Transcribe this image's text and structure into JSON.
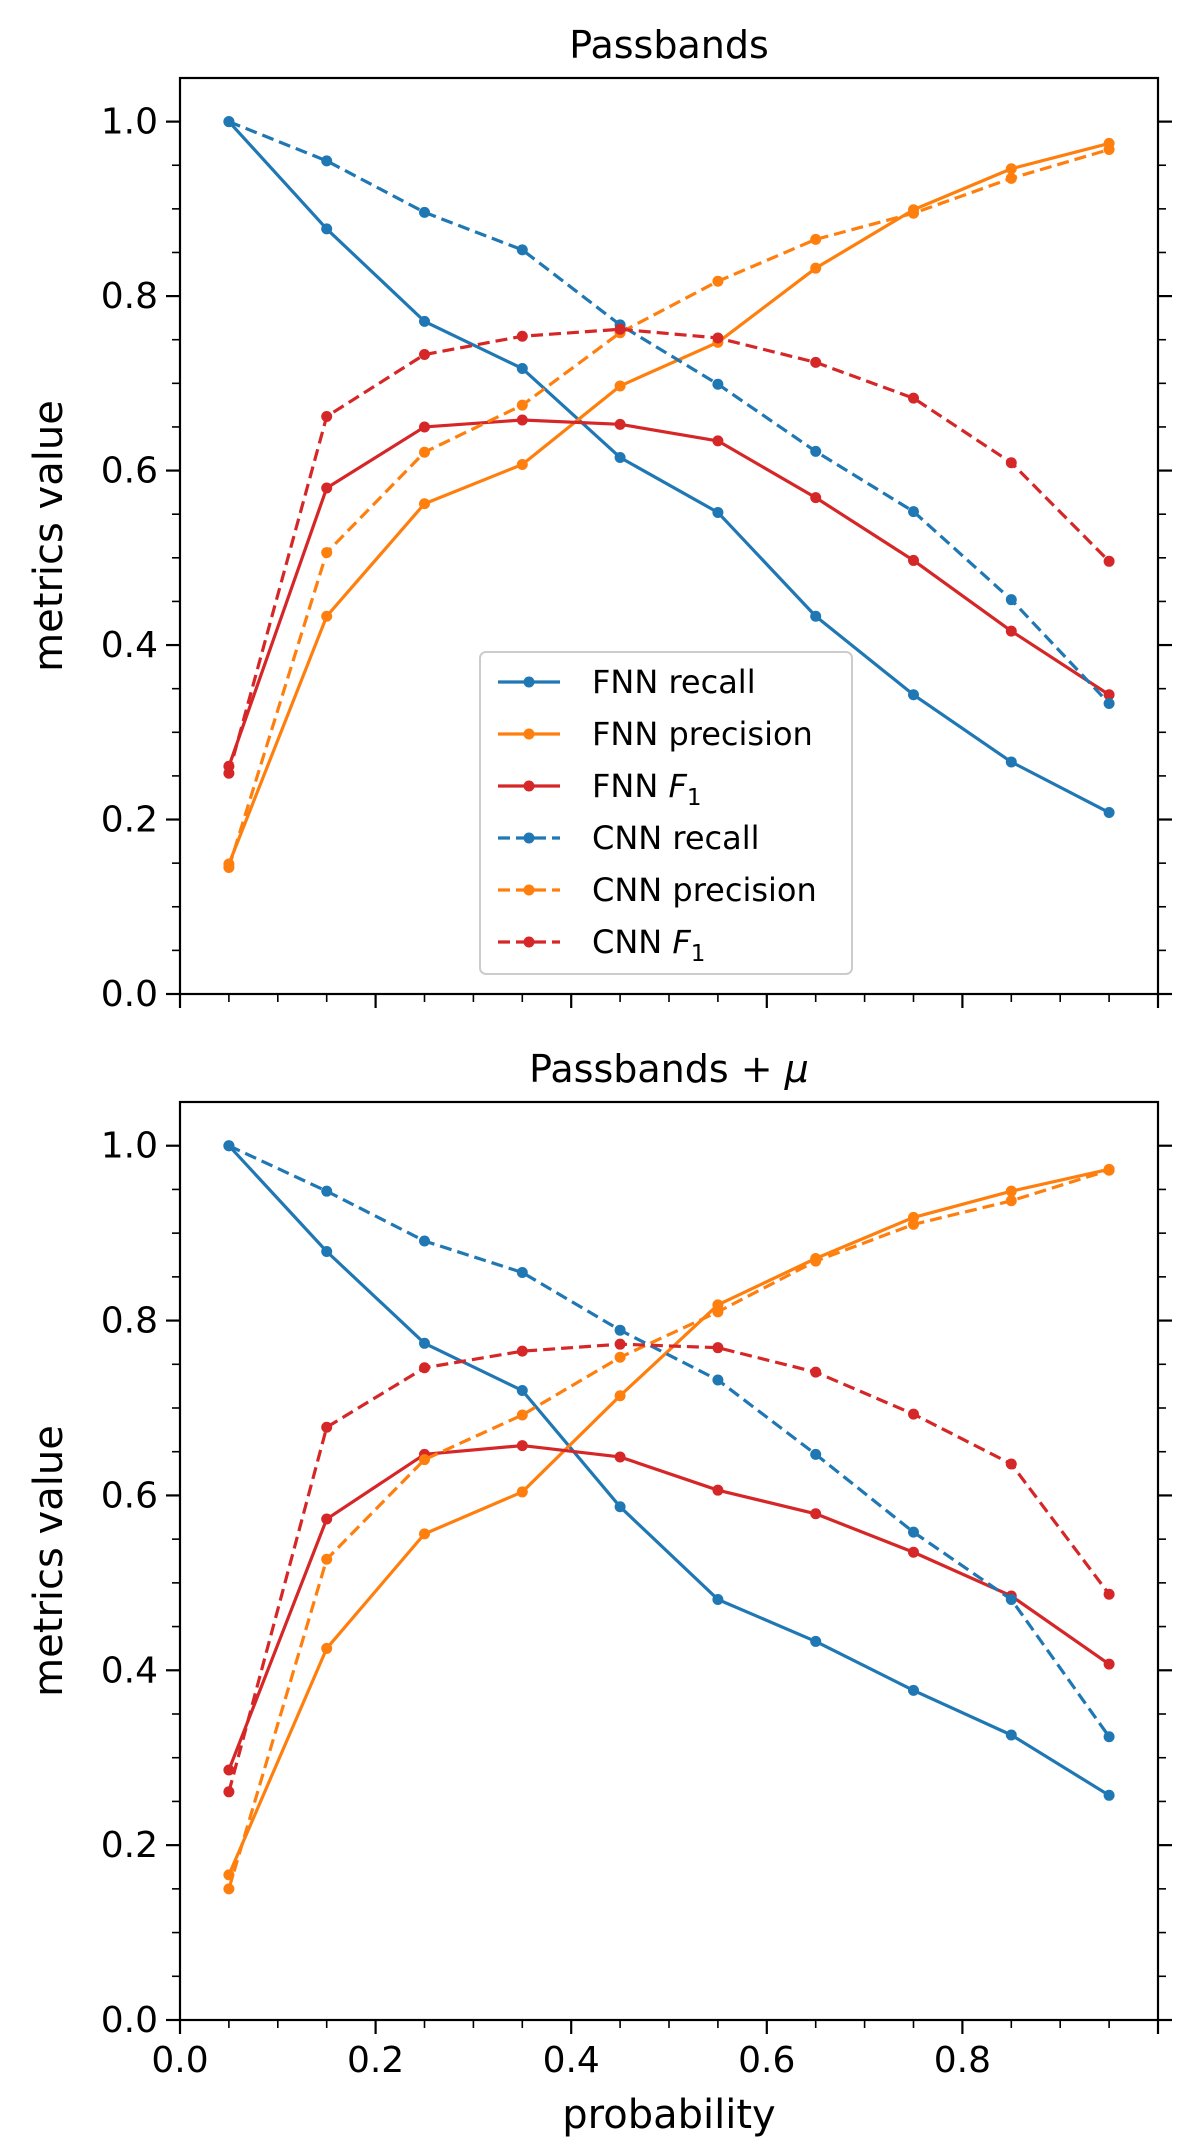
{
  "chart_data": [
    {
      "type": "line",
      "title": "Passbands",
      "title_suffix": "",
      "xlabel": "",
      "ylabel": "metrics value",
      "xlim": [
        0.0,
        1.0
      ],
      "ylim": [
        0.0,
        1.05
      ],
      "xticks": [],
      "yticks": [
        "0.0",
        "0.2",
        "0.4",
        "0.6",
        "0.8",
        "1.0"
      ],
      "legend": {
        "placement": "lower-center",
        "entries": [
          {
            "label": "FNN recall",
            "sub": ""
          },
          {
            "label": "FNN precision",
            "sub": ""
          },
          {
            "label": "FNN F",
            "sub": "1"
          },
          {
            "label": "CNN recall",
            "sub": ""
          },
          {
            "label": "CNN precision",
            "sub": ""
          },
          {
            "label": "CNN F",
            "sub": "1"
          }
        ]
      },
      "x": [
        0.05,
        0.15,
        0.25,
        0.35,
        0.45,
        0.55,
        0.65,
        0.75,
        0.85,
        0.95
      ],
      "series": [
        {
          "name": "FNN recall",
          "color": "#1f77b4",
          "style": "solid",
          "values": [
            1.0,
            0.877,
            0.771,
            0.717,
            0.615,
            0.552,
            0.433,
            0.343,
            0.266,
            0.208
          ]
        },
        {
          "name": "FNN precision",
          "color": "#ff7f0e",
          "style": "solid",
          "values": [
            0.149,
            0.433,
            0.562,
            0.607,
            0.697,
            0.747,
            0.832,
            0.899,
            0.946,
            0.975
          ]
        },
        {
          "name": "FNN F1",
          "color": "#d62728",
          "style": "solid",
          "values": [
            0.261,
            0.58,
            0.65,
            0.658,
            0.653,
            0.634,
            0.569,
            0.497,
            0.416,
            0.343
          ]
        },
        {
          "name": "CNN recall",
          "color": "#1f77b4",
          "style": "dashed",
          "values": [
            1.0,
            0.955,
            0.896,
            0.853,
            0.767,
            0.699,
            0.622,
            0.553,
            0.452,
            0.333
          ]
        },
        {
          "name": "CNN precision",
          "color": "#ff7f0e",
          "style": "dashed",
          "values": [
            0.145,
            0.506,
            0.621,
            0.675,
            0.758,
            0.817,
            0.865,
            0.895,
            0.935,
            0.968
          ]
        },
        {
          "name": "CNN F1",
          "color": "#d62728",
          "style": "dashed",
          "values": [
            0.253,
            0.662,
            0.733,
            0.754,
            0.762,
            0.752,
            0.724,
            0.683,
            0.609,
            0.496
          ]
        }
      ]
    },
    {
      "type": "line",
      "title": "Passbands + ",
      "title_suffix": "μ",
      "xlabel": "probability",
      "ylabel": "metrics value",
      "xlim": [
        0.0,
        1.0
      ],
      "ylim": [
        0.0,
        1.05
      ],
      "xticks": [
        "0.0",
        "0.2",
        "0.4",
        "0.6",
        "0.8"
      ],
      "yticks": [
        "0.0",
        "0.2",
        "0.4",
        "0.6",
        "0.8",
        "1.0"
      ],
      "legend": null,
      "x": [
        0.05,
        0.15,
        0.25,
        0.35,
        0.45,
        0.55,
        0.65,
        0.75,
        0.85,
        0.95
      ],
      "series": [
        {
          "name": "FNN recall",
          "color": "#1f77b4",
          "style": "solid",
          "values": [
            1.0,
            0.879,
            0.774,
            0.72,
            0.587,
            0.481,
            0.433,
            0.377,
            0.326,
            0.257
          ]
        },
        {
          "name": "FNN precision",
          "color": "#ff7f0e",
          "style": "solid",
          "values": [
            0.166,
            0.425,
            0.556,
            0.604,
            0.714,
            0.818,
            0.871,
            0.918,
            0.948,
            0.973
          ]
        },
        {
          "name": "FNN F1",
          "color": "#d62728",
          "style": "solid",
          "values": [
            0.286,
            0.573,
            0.647,
            0.657,
            0.644,
            0.606,
            0.579,
            0.535,
            0.485,
            0.407
          ]
        },
        {
          "name": "CNN recall",
          "color": "#1f77b4",
          "style": "dashed",
          "values": [
            1.0,
            0.948,
            0.891,
            0.855,
            0.789,
            0.732,
            0.647,
            0.558,
            0.481,
            0.324
          ]
        },
        {
          "name": "CNN precision",
          "color": "#ff7f0e",
          "style": "dashed",
          "values": [
            0.15,
            0.527,
            0.641,
            0.692,
            0.758,
            0.81,
            0.868,
            0.91,
            0.937,
            0.972
          ]
        },
        {
          "name": "CNN F1",
          "color": "#d62728",
          "style": "dashed",
          "values": [
            0.261,
            0.678,
            0.746,
            0.765,
            0.773,
            0.769,
            0.741,
            0.693,
            0.636,
            0.487
          ]
        }
      ]
    }
  ]
}
